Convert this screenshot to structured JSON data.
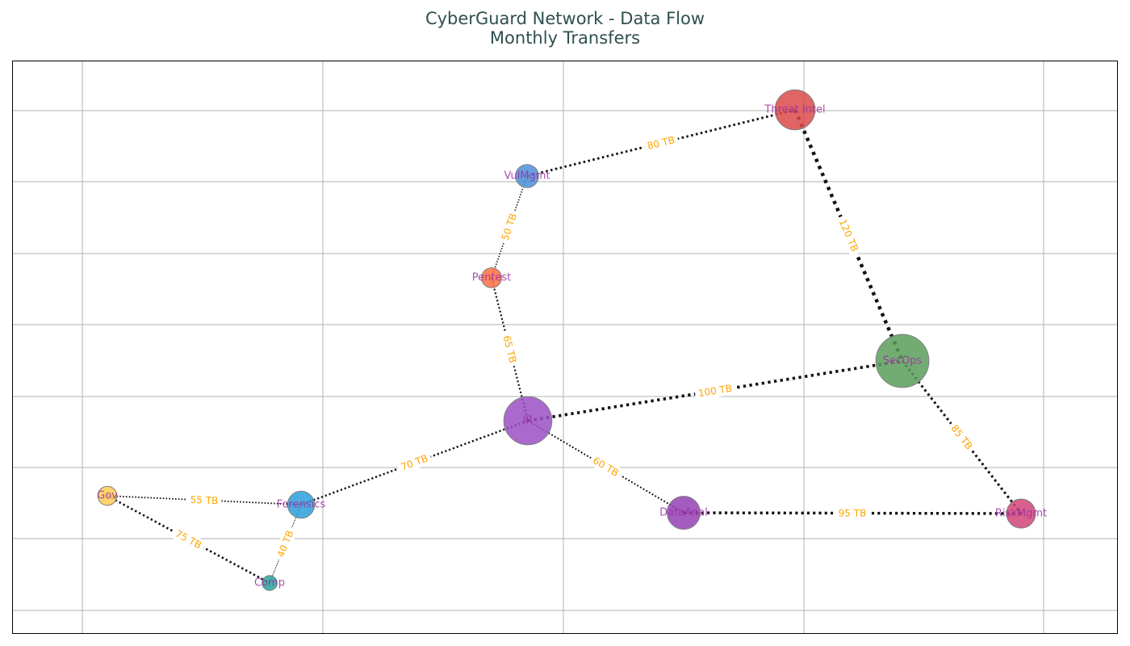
{
  "header": {
    "title": "CyberGuard Network - Data Flow",
    "subtitle": "Monthly Transfers"
  },
  "style": {
    "title_color": "#2f4f4f",
    "edge_color": "#111111",
    "edge_label_color": "#ffa500",
    "node_label_color": "#9b30a0",
    "grid_color": "#b0b0b0"
  },
  "chart_data": {
    "type": "network",
    "grid": true,
    "nodes": [
      {
        "id": "threat",
        "label": "Threat Intel",
        "color": "#dc4a4a",
        "size": 4.0
      },
      {
        "id": "vuln",
        "label": "VulMgmt",
        "color": "#4a90d9",
        "size": 2.3
      },
      {
        "id": "pentest",
        "label": "Pentest",
        "color": "#ff7043",
        "size": 2.0
      },
      {
        "id": "ir",
        "label": "IR",
        "color": "#9b4fc4",
        "size": 4.8
      },
      {
        "id": "secops",
        "label": "SecOps",
        "color": "#5a9e5a",
        "size": 5.3
      },
      {
        "id": "forensics",
        "label": "Forensics",
        "color": "#2b9fd9",
        "size": 2.7
      },
      {
        "id": "gov",
        "label": "Gov",
        "color": "#ffcc55",
        "size": 1.9
      },
      {
        "id": "comp",
        "label": "Comp",
        "color": "#26a69a",
        "size": 1.5
      },
      {
        "id": "data",
        "label": "DataAnal",
        "color": "#9441b3",
        "size": 3.3
      },
      {
        "id": "risk",
        "label": "RiskMgmt",
        "color": "#d14478",
        "size": 2.9
      }
    ],
    "edges": [
      {
        "source": "vuln",
        "target": "threat",
        "label": "80 TB",
        "value": 80
      },
      {
        "source": "threat",
        "target": "secops",
        "label": "120 TB",
        "value": 120
      },
      {
        "source": "vuln",
        "target": "pentest",
        "label": "50 TB",
        "value": 50
      },
      {
        "source": "pentest",
        "target": "ir",
        "label": "65 TB",
        "value": 65
      },
      {
        "source": "ir",
        "target": "secops",
        "label": "100 TB",
        "value": 100
      },
      {
        "source": "secops",
        "target": "risk",
        "label": "85 TB",
        "value": 85
      },
      {
        "source": "ir",
        "target": "forensics",
        "label": "70 TB",
        "value": 70
      },
      {
        "source": "ir",
        "target": "data",
        "label": "60 TB",
        "value": 60
      },
      {
        "source": "data",
        "target": "risk",
        "label": "95 TB",
        "value": 95
      },
      {
        "source": "gov",
        "target": "forensics",
        "label": "55 TB",
        "value": 55
      },
      {
        "source": "gov",
        "target": "comp",
        "label": "75 TB",
        "value": 75
      },
      {
        "source": "comp",
        "target": "forensics",
        "label": "40 TB",
        "value": 40
      }
    ]
  }
}
